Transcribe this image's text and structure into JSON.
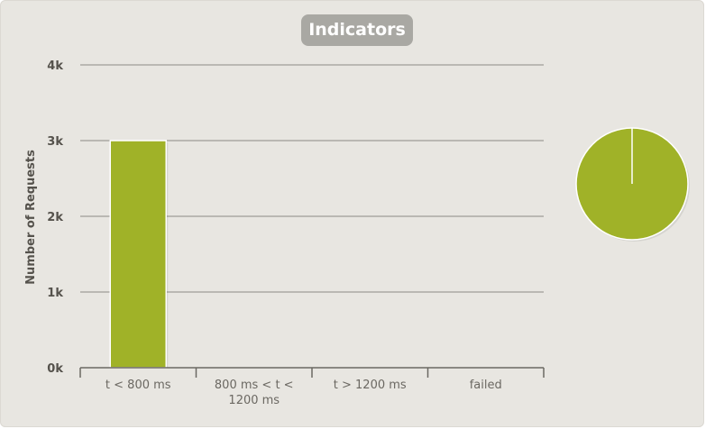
{
  "chart_data": [
    {
      "type": "bar",
      "title": "Indicators",
      "ylabel": "Number of Requests",
      "xlabel": "",
      "categories": [
        "t < 800 ms",
        "800 ms < t < 1200 ms",
        "t > 1200 ms",
        "failed"
      ],
      "category_lines": [
        [
          "t < 800 ms"
        ],
        [
          "800 ms < t <",
          "1200 ms"
        ],
        [
          "t > 1200 ms"
        ],
        [
          "failed"
        ]
      ],
      "values": [
        3000,
        0,
        0,
        0
      ],
      "ylim": [
        0,
        4000
      ],
      "yticks": [
        0,
        1000,
        2000,
        3000,
        4000
      ],
      "ytick_labels": [
        "0k",
        "1k",
        "2k",
        "3k",
        "4k"
      ],
      "grid": true,
      "legend": "none",
      "colors": {
        "bar": "#a0b228",
        "grid": "#8c8a85",
        "axis": "#6b6862"
      }
    },
    {
      "type": "pie",
      "values": [
        3000,
        0,
        0,
        0
      ],
      "categories": [
        "t < 800 ms",
        "800 ms < t < 1200 ms",
        "t > 1200 ms",
        "failed"
      ],
      "colors": [
        "#a0b228",
        "#ffffff",
        "#ffffff",
        "#ffffff"
      ]
    }
  ]
}
